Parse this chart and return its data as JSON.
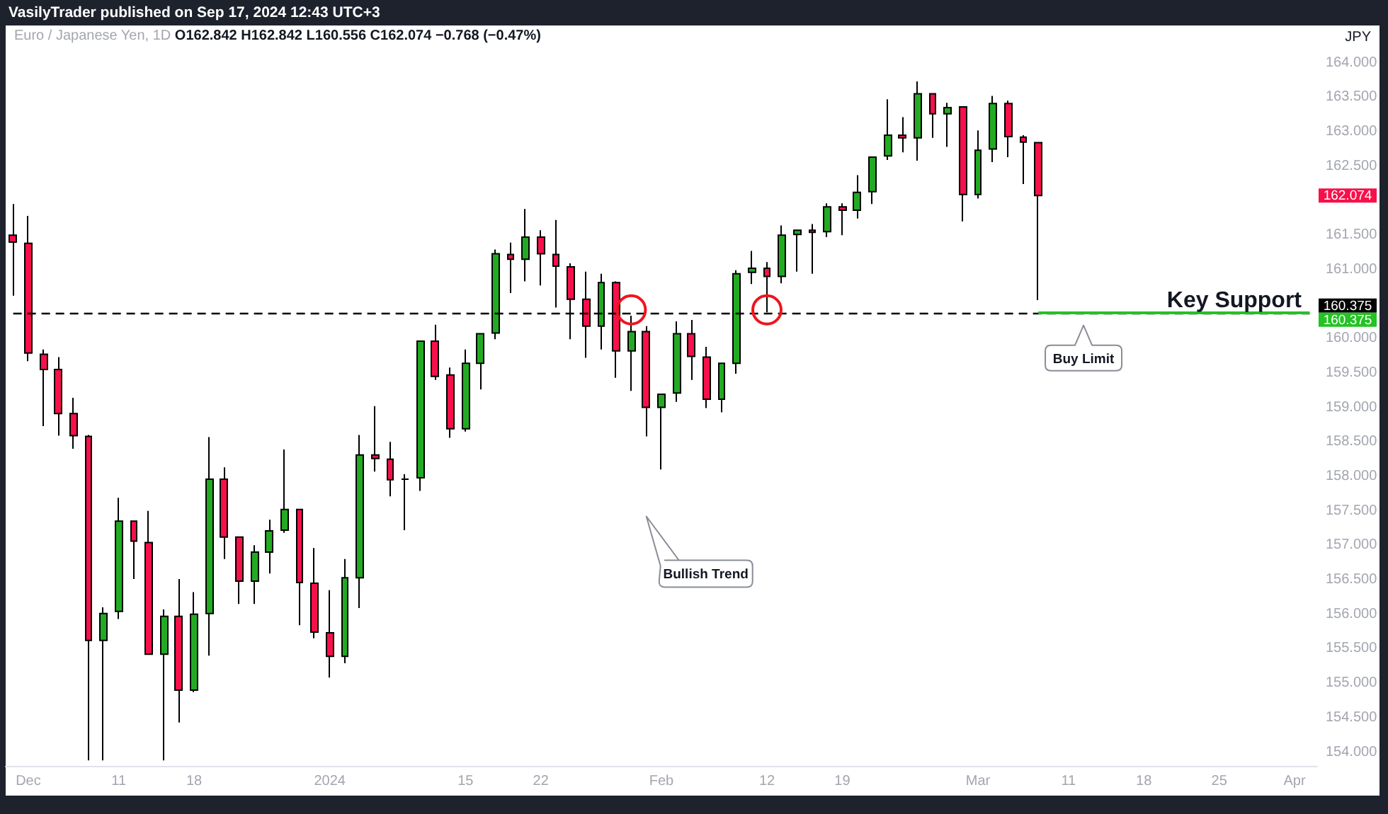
{
  "chart_data": {
    "type": "candlestick",
    "title": "Euro / Japanese Yen, 1D",
    "ylabel": "JPY",
    "annotations": [
      "VasilyTrader published on Sep 17, 2024 12:43 UTC+3",
      "O162.842 H162.842 L160.556 C162.074 −0.768 (−0.47%)",
      {
        "text": "Key Support",
        "y": 160.375
      },
      "Buy Limit",
      "Bullish Trend",
      "162.074"
    ],
    "categories": [
      null,
      "Dec",
      null,
      null,
      null,
      null,
      null,
      "11",
      null,
      null,
      null,
      null,
      "18",
      null,
      null,
      null,
      null,
      null,
      null,
      null,
      null,
      "2024",
      null,
      null,
      null,
      null,
      null,
      null,
      null,
      null,
      "15",
      null,
      null,
      null,
      null,
      "22",
      null,
      null,
      null,
      null,
      null,
      null,
      null,
      "Feb",
      null,
      null,
      null,
      null,
      null,
      null,
      "12",
      null,
      null,
      null,
      null,
      "19",
      null,
      null,
      null,
      null,
      null,
      null,
      null,
      null,
      "Mar",
      null,
      null,
      null,
      null,
      null,
      "11",
      null,
      null,
      null,
      null,
      "18",
      null,
      null,
      null,
      null,
      "25",
      null,
      null,
      null,
      null,
      "Apr",
      null
    ],
    "ohlc": [
      [
        161.5,
        161.95,
        160.62,
        161.4
      ],
      [
        161.38,
        161.78,
        159.67,
        159.79
      ],
      [
        159.77,
        159.84,
        158.73,
        159.55
      ],
      [
        159.55,
        159.73,
        158.59,
        158.91
      ],
      [
        158.91,
        159.14,
        158.4,
        158.59
      ],
      [
        158.58,
        158.6,
        153.88,
        155.62
      ],
      [
        155.62,
        156.1,
        153.88,
        156.01
      ],
      [
        156.04,
        157.69,
        155.93,
        157.35
      ],
      [
        157.35,
        157.35,
        156.51,
        157.06
      ],
      [
        157.04,
        157.5,
        155.42,
        155.42
      ],
      [
        155.42,
        156.07,
        153.88,
        155.97
      ],
      [
        155.97,
        156.51,
        154.43,
        154.9
      ],
      [
        154.9,
        156.32,
        154.87,
        156.0
      ],
      [
        156.01,
        158.57,
        155.4,
        157.96
      ],
      [
        157.96,
        158.13,
        156.8,
        157.12
      ],
      [
        157.12,
        157.12,
        156.15,
        156.48
      ],
      [
        156.48,
        157.0,
        156.15,
        156.9
      ],
      [
        156.9,
        157.37,
        156.59,
        157.21
      ],
      [
        157.22,
        158.39,
        157.18,
        157.52
      ],
      [
        157.52,
        157.52,
        155.84,
        156.46
      ],
      [
        156.45,
        156.96,
        155.65,
        155.74
      ],
      [
        155.73,
        156.35,
        155.08,
        155.39
      ],
      [
        155.39,
        156.8,
        155.29,
        156.53
      ],
      [
        156.53,
        158.6,
        156.09,
        158.31
      ],
      [
        158.31,
        159.02,
        158.07,
        158.26
      ],
      [
        158.25,
        158.5,
        157.71,
        157.95
      ],
      [
        157.96,
        158.03,
        157.22,
        157.96
      ],
      [
        157.98,
        159.96,
        157.79,
        159.96
      ],
      [
        159.96,
        160.2,
        159.4,
        159.45
      ],
      [
        159.47,
        159.58,
        158.56,
        158.69
      ],
      [
        158.69,
        159.84,
        158.65,
        159.64
      ],
      [
        159.64,
        160.07,
        159.26,
        160.07
      ],
      [
        160.08,
        161.29,
        159.99,
        161.23
      ],
      [
        161.22,
        161.39,
        160.66,
        161.15
      ],
      [
        161.15,
        161.88,
        160.83,
        161.47
      ],
      [
        161.47,
        161.57,
        160.77,
        161.23
      ],
      [
        161.22,
        161.72,
        160.45,
        161.05
      ],
      [
        161.04,
        161.09,
        159.99,
        160.57
      ],
      [
        160.57,
        160.97,
        159.72,
        160.18
      ],
      [
        160.18,
        160.94,
        159.84,
        160.81
      ],
      [
        160.81,
        160.83,
        159.43,
        159.82
      ],
      [
        159.82,
        160.33,
        159.24,
        160.1
      ],
      [
        160.1,
        160.18,
        158.58,
        159.0
      ],
      [
        159.0,
        159.19,
        158.1,
        159.19
      ],
      [
        159.21,
        160.25,
        159.08,
        160.07
      ],
      [
        160.07,
        160.27,
        159.4,
        159.74
      ],
      [
        159.73,
        159.88,
        158.99,
        159.12
      ],
      [
        159.12,
        159.64,
        158.93,
        159.64
      ],
      [
        159.64,
        160.99,
        159.49,
        160.94
      ],
      [
        160.96,
        161.27,
        160.79,
        161.02
      ],
      [
        161.02,
        161.11,
        160.38,
        160.9
      ],
      [
        160.9,
        161.64,
        160.8,
        161.5
      ],
      [
        161.51,
        161.57,
        160.97,
        161.57
      ],
      [
        161.57,
        161.66,
        160.94,
        161.54
      ],
      [
        161.55,
        161.96,
        161.47,
        161.91
      ],
      [
        161.91,
        161.96,
        161.5,
        161.86
      ],
      [
        161.86,
        162.37,
        161.74,
        162.12
      ],
      [
        162.13,
        162.63,
        161.95,
        162.63
      ],
      [
        162.65,
        163.47,
        162.59,
        162.95
      ],
      [
        162.95,
        163.21,
        162.7,
        162.91
      ],
      [
        162.91,
        163.73,
        162.58,
        163.55
      ],
      [
        163.55,
        163.55,
        162.91,
        163.26
      ],
      [
        163.26,
        163.42,
        162.78,
        163.35
      ],
      [
        163.36,
        163.36,
        161.7,
        162.09
      ],
      [
        162.09,
        163.02,
        162.03,
        162.73
      ],
      [
        162.75,
        163.52,
        162.56,
        163.41
      ],
      [
        163.41,
        163.45,
        162.63,
        162.93
      ],
      [
        162.92,
        162.95,
        162.24,
        162.85
      ],
      [
        162.842,
        162.842,
        160.556,
        162.074
      ],
      null,
      null,
      null,
      null,
      null,
      null,
      null,
      null,
      null,
      null,
      null,
      null,
      null,
      null,
      null,
      null,
      null,
      null
    ],
    "colors": [
      "#f7104a",
      "#f7104a",
      "#f7104a",
      "#f7104a",
      "#f7104a",
      "#f7104a",
      "#22ab22",
      "#22ab22",
      "#f7104a",
      "#f7104a",
      "#22ab22",
      "#f7104a",
      "#22ab22",
      "#22ab22",
      "#f7104a",
      "#f7104a",
      "#22ab22",
      "#22ab22",
      "#22ab22",
      "#f7104a",
      "#f7104a",
      "#f7104a",
      "#22ab22",
      "#22ab22",
      "#f7104a",
      "#f7104a",
      "#000000",
      "#22ab22",
      "#f7104a",
      "#f7104a",
      "#22ab22",
      "#22ab22",
      "#22ab22",
      "#f7104a",
      "#22ab22",
      "#f7104a",
      "#f7104a",
      "#f7104a",
      "#f7104a",
      "#22ab22",
      "#f7104a",
      "#22ab22",
      "#f7104a",
      "#22ab22",
      "#22ab22",
      "#f7104a",
      "#f7104a",
      "#22ab22",
      "#22ab22",
      "#22ab22",
      "#f7104a",
      "#22ab22",
      "#22ab22",
      "#f7104a",
      "#22ab22",
      "#f7104a",
      "#22ab22",
      "#22ab22",
      "#22ab22",
      "#f7104a",
      "#22ab22",
      "#f7104a",
      "#22ab22",
      "#f7104a",
      "#22ab22",
      "#22ab22",
      "#f7104a",
      "#f7104a",
      "#f7104a",
      null,
      null,
      null,
      null,
      null,
      null,
      null,
      null,
      null,
      null,
      null,
      null,
      null,
      null,
      null,
      null,
      null,
      null
    ],
    "ylim": [
      153.8,
      164.5
    ],
    "yticks": [
      {
        "value": 154,
        "label": "154.000"
      },
      {
        "value": 154.5,
        "label": "154.500"
      },
      {
        "value": 155,
        "label": "155.000"
      },
      {
        "value": 155.5,
        "label": "155.500"
      },
      {
        "value": 156,
        "label": "156.000"
      },
      {
        "value": 156.5,
        "label": "156.500"
      },
      {
        "value": 157,
        "label": "157.000"
      },
      {
        "value": 157.5,
        "label": "157.500"
      },
      {
        "value": 158,
        "label": "158.000"
      },
      {
        "value": 158.5,
        "label": "158.500"
      },
      {
        "value": 159,
        "label": "159.000"
      },
      {
        "value": 159.5,
        "label": "159.500"
      },
      {
        "value": 160,
        "label": "160.000"
      },
      {
        "value": 161,
        "label": "161.000"
      },
      {
        "value": 161.5,
        "label": "161.500"
      },
      {
        "value": 162.5,
        "label": "162.500"
      },
      {
        "value": 163,
        "label": "163.000"
      },
      {
        "value": 163.5,
        "label": "163.500"
      },
      {
        "value": 164,
        "label": "164.000"
      }
    ],
    "ref_lines": [
      {
        "axis": "y",
        "value": 160.375,
        "label": "160.375",
        "color": "#000000",
        "line_style": "dashed"
      },
      {
        "axis": "y",
        "value": 160.375,
        "label": "160.375",
        "color": "#22c322",
        "line_style": "solid"
      }
    ],
    "grid": false
  }
}
